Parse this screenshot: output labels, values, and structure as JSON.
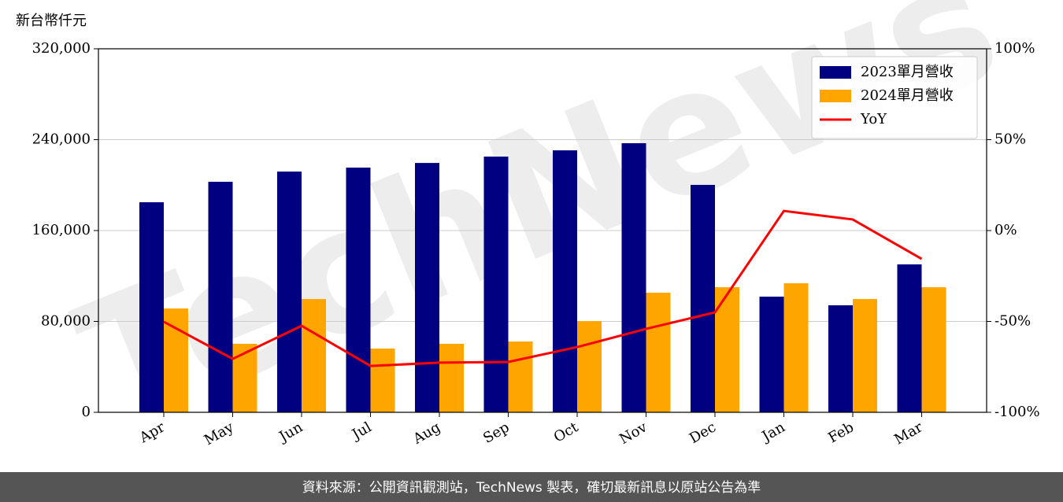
{
  "chart_data": {
    "type": "bar",
    "y_label": "新台幣仟元",
    "watermark": "TechNews",
    "categories": [
      "Apr",
      "May",
      "Jun",
      "Jul",
      "Aug",
      "Sep",
      "Oct",
      "Nov",
      "Dec",
      "Jan",
      "Feb",
      "Mar"
    ],
    "series": [
      {
        "name": "2023單月營收",
        "type": "bar",
        "color": "#000080",
        "values": [
          184900,
          202900,
          211900,
          215400,
          219500,
          225100,
          230600,
          236900,
          200200,
          101800,
          94200,
          130200
        ]
      },
      {
        "name": "2024單月營收",
        "type": "bar",
        "color": "#ffa500",
        "values": [
          91400,
          60300,
          99700,
          56100,
          60300,
          62300,
          80300,
          105300,
          110100,
          113600,
          99700,
          110100
        ]
      },
      {
        "name": "YoY",
        "type": "line",
        "axis": "y2",
        "color": "#ff0000",
        "values": [
          -50.2,
          -70.6,
          -52.4,
          -74.5,
          -72.7,
          -72.3,
          -64.1,
          -54.1,
          -45.0,
          10.8,
          6.1,
          -15.6
        ]
      }
    ],
    "ylim": [
      0,
      320000
    ],
    "yticks": [
      0,
      {
        "value": 80000,
        "label": "80,000"
      },
      {
        "value": 160000,
        "label": "160,000"
      },
      {
        "value": 240000,
        "label": "240,000"
      },
      {
        "value": 320000,
        "label": "320,000"
      }
    ],
    "y2lim": [
      -100,
      100
    ],
    "y2ticks": [
      {
        "value": -100,
        "label": "-100%"
      },
      {
        "value": -50,
        "label": "-50%"
      },
      {
        "value": 0,
        "label": "0%"
      },
      {
        "value": 50,
        "label": "50%"
      },
      {
        "value": 100,
        "label": "100%"
      }
    ],
    "grid": true,
    "legend": "upper right"
  },
  "footer": "資料來源：公開資訊觀測站，TechNews 製表，確切最新訊息以原站公告為準"
}
